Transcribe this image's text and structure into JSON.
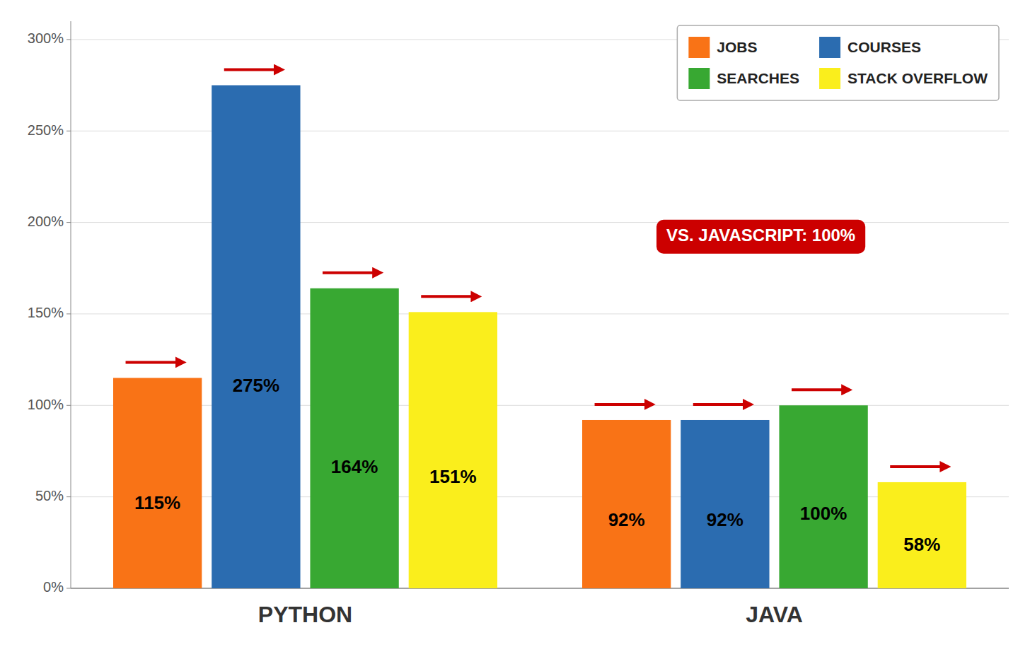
{
  "chart_data": {
    "type": "bar",
    "categories": [
      "PYTHON",
      "JAVA"
    ],
    "series": [
      {
        "name": "JOBS",
        "color": "#F97316",
        "values": [
          115,
          92
        ],
        "value_labels": [
          "115%",
          "92%"
        ]
      },
      {
        "name": "COURSES",
        "color": "#2B6CB0",
        "values": [
          275,
          92
        ],
        "value_labels": [
          "275%",
          "92%"
        ]
      },
      {
        "name": "SEARCHES",
        "color": "#38A832",
        "values": [
          164,
          100
        ],
        "value_labels": [
          "164%",
          "100%"
        ]
      },
      {
        "name": "STACK OVERFLOW",
        "color": "#FAEE1C",
        "values": [
          151,
          58
        ],
        "value_labels": [
          "151%",
          "58%"
        ]
      }
    ],
    "ylim": [
      0,
      310
    ],
    "yticks": [
      {
        "value": 0,
        "label": "0%"
      },
      {
        "value": 50,
        "label": "50%"
      },
      {
        "value": 100,
        "label": "100%"
      },
      {
        "value": 150,
        "label": "150%"
      },
      {
        "value": 200,
        "label": "200%"
      },
      {
        "value": 250,
        "label": "250%"
      },
      {
        "value": 300,
        "label": "300%"
      }
    ],
    "grid": true,
    "legend": "top-right",
    "data_labels": true,
    "annotation": "VS. JAVASCRIPT: 100%"
  }
}
